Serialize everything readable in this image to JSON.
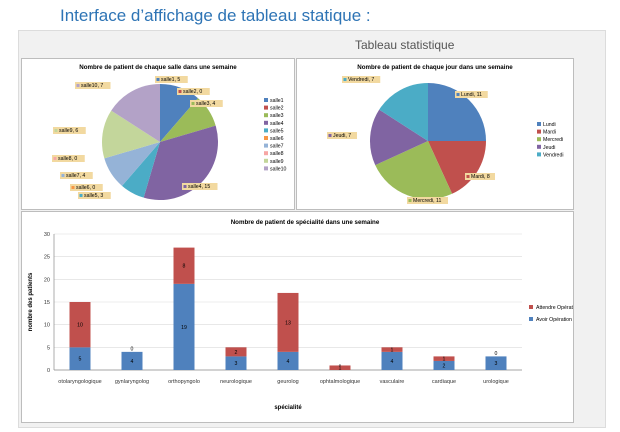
{
  "page": {
    "title": "Interface d’affichage de tableau statique :",
    "caption": "Tableau statistique"
  },
  "colors": {
    "label_box": "#f2d9a0",
    "grid": "#d9d9d9"
  },
  "chart_data": [
    {
      "type": "pie",
      "title": "Nombre de patient de chaque salle dans une semaine",
      "categories": [
        "salle1",
        "salle2",
        "salle3",
        "salle4",
        "salle5",
        "salle6",
        "salle7",
        "salle8",
        "salle9",
        "salle10"
      ],
      "values": [
        5,
        0,
        4,
        15,
        3,
        0,
        4,
        0,
        6,
        7
      ],
      "colors": [
        "#4f81bd",
        "#c0504d",
        "#9bbb59",
        "#8064a2",
        "#4bacc6",
        "#f79646",
        "#95b3d7",
        "#f7a6a4",
        "#c3d69b",
        "#b3a2c7"
      ],
      "data_labels": [
        "salle1, 5",
        "salle2, 0",
        "salle3, 4",
        "salle4, 15",
        "salle5, 3",
        "salle6, 0",
        "salle7, 4",
        "salle8, 0",
        "salle9, 6",
        "salle10, 7"
      ],
      "legend": "right"
    },
    {
      "type": "pie",
      "title": "Nombre de patient de chaque jour dans une semaine",
      "categories": [
        "Lundi",
        "Mardi",
        "Mercredi",
        "Jeudi",
        "Vendredi"
      ],
      "values": [
        11,
        8,
        11,
        7,
        7
      ],
      "colors": [
        "#4f81bd",
        "#c0504d",
        "#9bbb59",
        "#8064a2",
        "#4bacc6"
      ],
      "data_labels": [
        "Lundi, 11",
        "Mardi, 8",
        "Mercredi, 11",
        "Jeudi, 7",
        "Vendredi, 7"
      ],
      "legend": "right"
    },
    {
      "type": "bar",
      "stacked": true,
      "title": "Nombre de patient de spécialité dans une semaine",
      "xlabel": "spécialité",
      "ylabel": "nombre des patients",
      "ylim": [
        0,
        30
      ],
      "yticks": [
        0,
        5,
        10,
        15,
        20,
        25,
        30
      ],
      "categories": [
        "otolaryngologique",
        "gynlaryngolog",
        "orthopyngolo",
        "neurologique",
        "geurolog",
        "ophtalmologique",
        "vasculaire",
        "cardiaque",
        "urologique"
      ],
      "series": [
        {
          "name": "Avoir Opération",
          "color": "#4f81bd",
          "values": [
            5,
            4,
            19,
            3,
            4,
            0,
            4,
            2,
            3
          ]
        },
        {
          "name": "Attendre Opération",
          "color": "#c0504d",
          "values": [
            10,
            0,
            8,
            2,
            13,
            1,
            1,
            1,
            0
          ]
        }
      ],
      "grid": true,
      "legend": "right"
    }
  ]
}
